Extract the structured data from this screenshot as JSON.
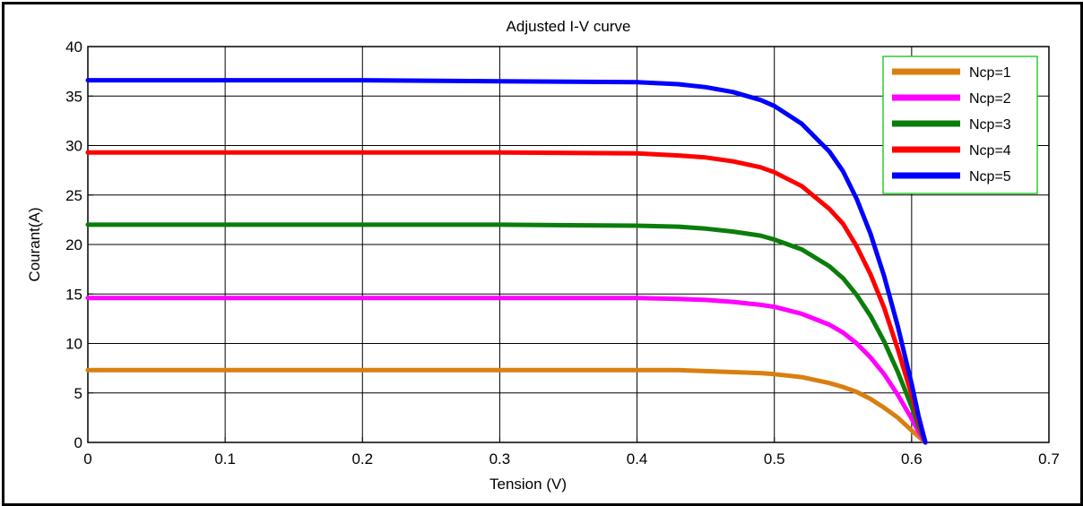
{
  "chart_data": {
    "type": "line",
    "title": "Adjusted I-V curve",
    "xlabel": "Tension (V)",
    "ylabel": "Courant(A)",
    "xlim": [
      0,
      0.7
    ],
    "ylim": [
      0,
      40
    ],
    "xticks": [
      "0",
      "0.1",
      "0.2",
      "0.3",
      "0.4",
      "0.5",
      "0.6",
      "0.7"
    ],
    "yticks": [
      "0",
      "5",
      "10",
      "15",
      "20",
      "25",
      "30",
      "35",
      "40"
    ],
    "grid": true,
    "legend_position": "top-right",
    "x": [
      0,
      0.1,
      0.2,
      0.3,
      0.4,
      0.43,
      0.45,
      0.47,
      0.49,
      0.5,
      0.52,
      0.54,
      0.55,
      0.56,
      0.57,
      0.58,
      0.59,
      0.6,
      0.605,
      0.61
    ],
    "series": [
      {
        "name": "Ncp=1",
        "color": "#d97f10",
        "values": [
          7.3,
          7.3,
          7.3,
          7.3,
          7.3,
          7.3,
          7.2,
          7.1,
          7.0,
          6.9,
          6.6,
          6.0,
          5.6,
          5.1,
          4.4,
          3.5,
          2.5,
          1.2,
          0.6,
          0
        ]
      },
      {
        "name": "Ncp=2",
        "color": "#ff00ff",
        "values": [
          14.6,
          14.6,
          14.6,
          14.6,
          14.6,
          14.5,
          14.4,
          14.2,
          13.9,
          13.7,
          13.0,
          11.9,
          11.1,
          10.0,
          8.6,
          6.9,
          4.8,
          2.4,
          1.1,
          0
        ]
      },
      {
        "name": "Ncp=3",
        "color": "#0a7d0a",
        "values": [
          22.0,
          22.0,
          22.0,
          22.0,
          21.9,
          21.8,
          21.6,
          21.3,
          20.9,
          20.5,
          19.5,
          17.8,
          16.6,
          14.9,
          12.8,
          10.2,
          7.1,
          3.6,
          1.7,
          0
        ]
      },
      {
        "name": "Ncp=4",
        "color": "#ff0000",
        "values": [
          29.3,
          29.3,
          29.3,
          29.3,
          29.2,
          29.0,
          28.8,
          28.4,
          27.8,
          27.3,
          25.9,
          23.6,
          22.1,
          19.8,
          17.0,
          13.6,
          9.4,
          4.8,
          2.2,
          0
        ]
      },
      {
        "name": "Ncp=5",
        "color": "#0000ff",
        "values": [
          36.6,
          36.6,
          36.6,
          36.5,
          36.4,
          36.2,
          35.9,
          35.4,
          34.6,
          34.0,
          32.2,
          29.4,
          27.4,
          24.6,
          21.1,
          16.8,
          11.7,
          5.9,
          2.7,
          0
        ]
      }
    ]
  }
}
